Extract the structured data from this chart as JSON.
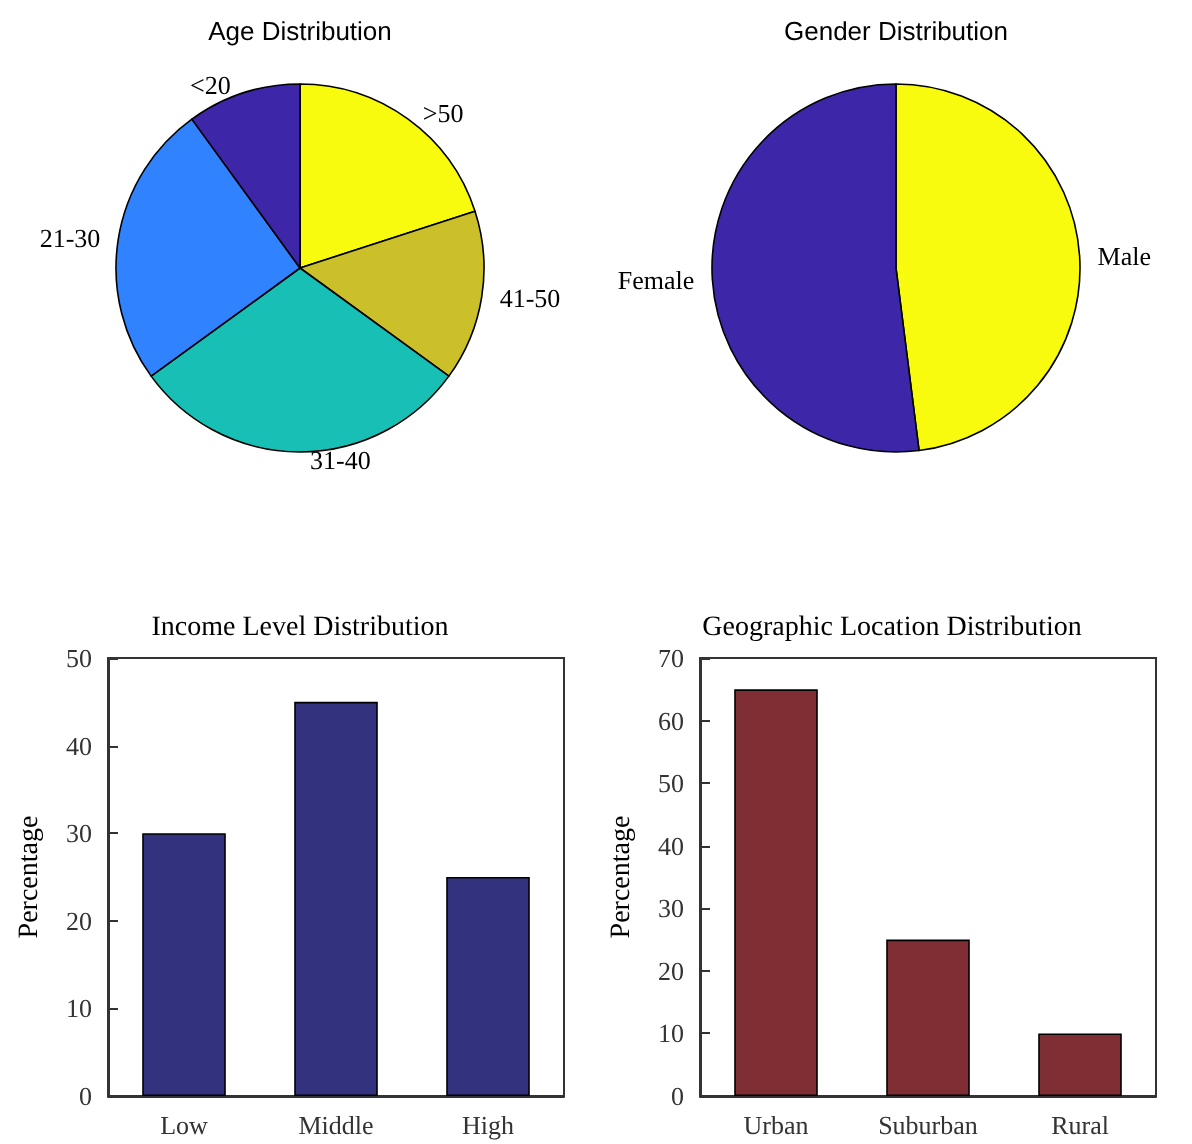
{
  "chart_data": [
    {
      "type": "pie",
      "title": "Age Distribution",
      "categories": [
        ">50",
        "41-50",
        "31-40",
        "21-30",
        "<20"
      ],
      "values": [
        20,
        15,
        30,
        25,
        10
      ],
      "colors": [
        "#f9fb0e",
        "#cbc02a",
        "#17bfb5",
        "#3182fe",
        "#3d26a8"
      ],
      "legend": false
    },
    {
      "type": "pie",
      "title": "Gender Distribution",
      "categories": [
        "Male",
        "Female"
      ],
      "values": [
        48,
        52
      ],
      "colors": [
        "#f9fb0e",
        "#3e26a8"
      ],
      "legend": false
    },
    {
      "type": "bar",
      "title": "Income Level Distribution",
      "ylabel": "Percentage",
      "categories": [
        "Low",
        "Middle",
        "High"
      ],
      "values": [
        30,
        45,
        25
      ],
      "color": "#32327e",
      "ylim": [
        0,
        50
      ],
      "yticks": [
        0,
        10,
        20,
        30,
        40,
        50
      ],
      "grid": false,
      "legend": false
    },
    {
      "type": "bar",
      "title": "Geographic Location Distribution",
      "ylabel": "Percentage",
      "categories": [
        "Urban",
        "Suburban",
        "Rural"
      ],
      "values": [
        65,
        25,
        10
      ],
      "color": "#7f2f33",
      "ylim": [
        0,
        70
      ],
      "yticks": [
        0,
        10,
        20,
        30,
        40,
        50,
        60,
        70
      ],
      "grid": false,
      "legend": false
    }
  ]
}
